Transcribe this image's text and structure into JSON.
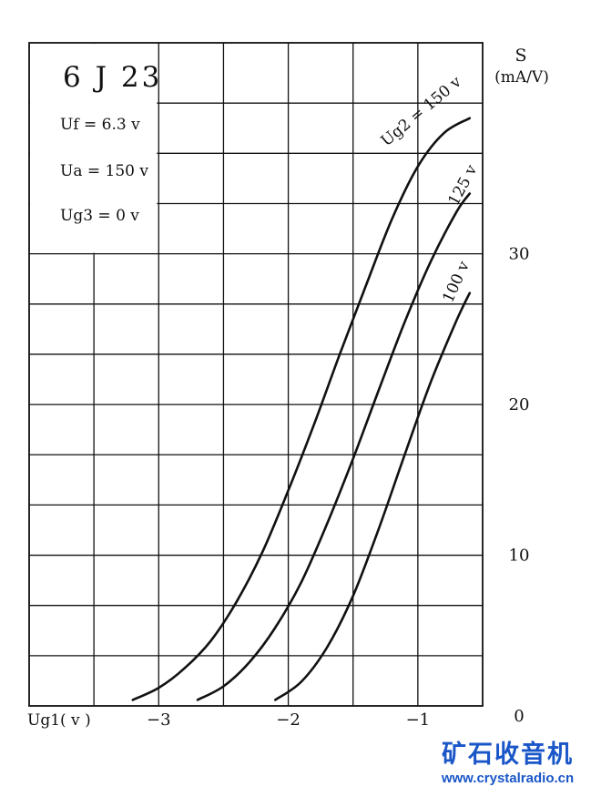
{
  "chart_data": {
    "type": "line",
    "title": "6 J 23",
    "conditions": [
      "Uf = 6.3 v",
      "Ua = 150 v",
      "Ug3 = 0 v"
    ],
    "xlabel": "Ug1( v )",
    "ylabel_symbol": "S",
    "ylabel_unit": "(mA/V)",
    "xlim": [
      -4.0,
      -0.5
    ],
    "ylim": [
      0,
      44
    ],
    "x_ticks": [
      {
        "value": -3,
        "label": "−3"
      },
      {
        "value": -2,
        "label": "−2"
      },
      {
        "value": -1,
        "label": "−1"
      }
    ],
    "y_ticks": [
      {
        "value": 0,
        "label": "0"
      },
      {
        "value": 10,
        "label": "10"
      },
      {
        "value": 20,
        "label": "20"
      },
      {
        "value": 30,
        "label": "30"
      }
    ],
    "grid": true,
    "series": [
      {
        "name": "Ug2 = 150 v",
        "x": [
          -3.2,
          -3.0,
          -2.8,
          -2.6,
          -2.4,
          -2.2,
          -2.0,
          -1.8,
          -1.6,
          -1.4,
          -1.2,
          -1.0,
          -0.8,
          -0.6
        ],
        "y": [
          0.4,
          1.2,
          2.5,
          4.3,
          6.9,
          10.2,
          14.3,
          18.7,
          23.4,
          27.9,
          32.3,
          35.8,
          38.0,
          39.0
        ]
      },
      {
        "name": "125 v",
        "x": [
          -2.7,
          -2.5,
          -2.3,
          -2.1,
          -1.9,
          -1.7,
          -1.5,
          -1.3,
          -1.1,
          -0.9,
          -0.7,
          -0.6
        ],
        "y": [
          0.4,
          1.3,
          2.9,
          5.2,
          8.2,
          12.1,
          16.4,
          21.0,
          25.5,
          29.5,
          32.8,
          34.0
        ]
      },
      {
        "name": "100 v",
        "x": [
          -2.1,
          -1.9,
          -1.7,
          -1.5,
          -1.3,
          -1.1,
          -0.9,
          -0.7,
          -0.6
        ],
        "y": [
          0.4,
          1.6,
          3.9,
          7.3,
          11.8,
          16.7,
          21.5,
          25.6,
          27.4
        ]
      }
    ]
  },
  "watermark": {
    "title": "矿石收音机",
    "url": "www.crystalradio.cn"
  }
}
